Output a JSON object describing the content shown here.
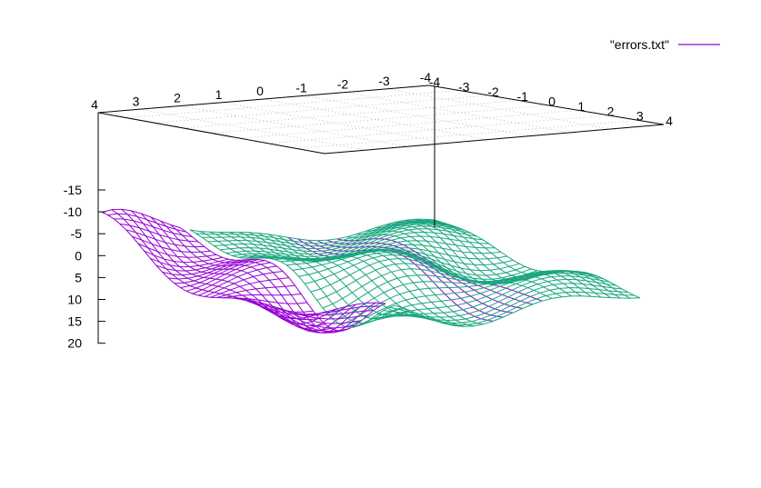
{
  "chart_data": {
    "type": "surface",
    "title": "",
    "legend": {
      "label": "\"errors.txt\"",
      "position": "top-right",
      "color": "#9400d3"
    },
    "colors": {
      "top_surface": "#1aa67f",
      "bottom_surface": "#9400d3"
    },
    "x_ticks": [
      "4",
      "3",
      "2",
      "1",
      "0",
      "-1",
      "-2",
      "-3",
      "-4"
    ],
    "y_ticks": [
      "-4",
      "-3",
      "-2",
      "-1",
      "0",
      "1",
      "2",
      "3",
      "4"
    ],
    "z_ticks": [
      "-15",
      "-10",
      "-5",
      "0",
      "5",
      "10",
      "15",
      "20"
    ],
    "xrange": [
      -4,
      4
    ],
    "yrange": [
      -4,
      4
    ],
    "zrange": [
      -15,
      20
    ],
    "z_axis_reversed": true,
    "base_grid": true,
    "view": "surface seen from below, base plane drawn above the surface"
  }
}
